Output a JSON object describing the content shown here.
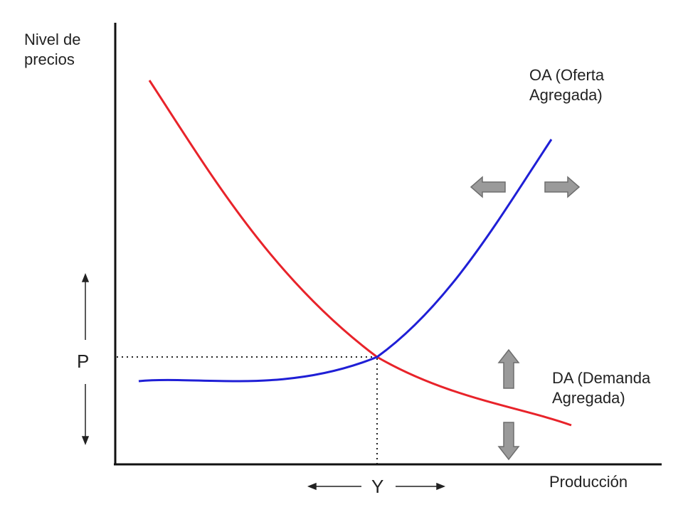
{
  "axes": {
    "y_label": [
      "Nivel de",
      "precios"
    ],
    "x_label": "Producción"
  },
  "curves": {
    "oa_label": [
      "OA (Oferta",
      "Agregada)"
    ],
    "da_label": [
      "DA (Demanda",
      "Agregada)"
    ],
    "oa_color": "#1f1fd6",
    "da_color": "#e8232a"
  },
  "equilibrium": {
    "p_label": "P",
    "y_label": "Y"
  },
  "arrows": {
    "fill": "#9a9a9a",
    "stroke": "#6e6e6e",
    "shift_icons": [
      "arrow-left-icon",
      "arrow-right-icon",
      "arrow-up-icon",
      "arrow-down-icon"
    ]
  }
}
